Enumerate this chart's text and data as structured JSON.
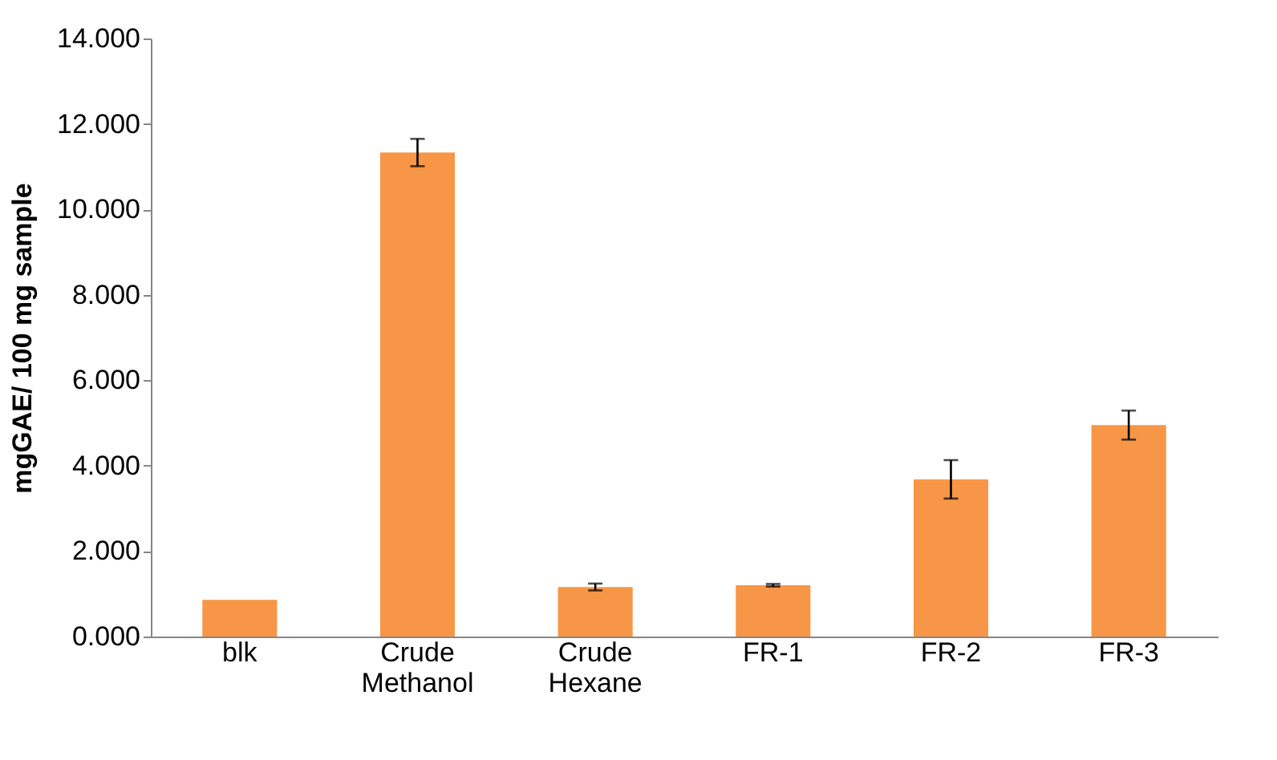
{
  "chart_data": {
    "type": "bar",
    "ylabel": "mgGAE/ 100 mg sample",
    "categories": [
      "blk",
      "Crude Methanol",
      "Crude Hexane",
      "FR-1",
      "FR-2",
      "FR-3"
    ],
    "series": [
      {
        "color": "#f79646",
        "values": [
          0.86,
          11.33,
          1.16,
          1.2,
          3.68,
          4.95
        ],
        "errors": [
          null,
          0.32,
          0.08,
          0.03,
          0.45,
          0.34
        ]
      }
    ],
    "ylim": [
      0,
      14
    ],
    "yticks": [
      {
        "value": 0,
        "label": "0.000"
      },
      {
        "value": 2,
        "label": "2.000"
      },
      {
        "value": 4,
        "label": "4.000"
      },
      {
        "value": 6,
        "label": "6.000"
      },
      {
        "value": 8,
        "label": "8.000"
      },
      {
        "value": 10,
        "label": "10.000"
      },
      {
        "value": 12,
        "label": "12.000"
      },
      {
        "value": 14,
        "label": "14.000"
      }
    ],
    "grid": false
  }
}
